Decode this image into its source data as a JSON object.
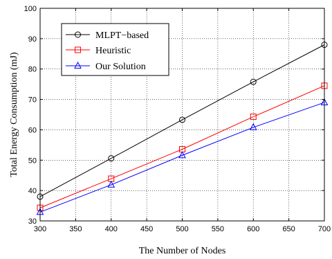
{
  "chart_data": {
    "type": "line",
    "xlabel": "The Number of Nodes",
    "ylabel": "Total Energy Consumption (mJ)",
    "xlim": [
      300,
      700
    ],
    "ylim": [
      30,
      100
    ],
    "xticks": [
      300,
      350,
      400,
      450,
      500,
      550,
      600,
      650,
      700
    ],
    "yticks": [
      30,
      40,
      50,
      60,
      70,
      80,
      90,
      100
    ],
    "grid": true,
    "legend_position": "top-left",
    "series": [
      {
        "name": "MLPT−based",
        "color": "#000000",
        "marker": "circle",
        "x": [
          300,
          400,
          500,
          600,
          700
        ],
        "y": [
          38.0,
          50.6,
          63.3,
          75.8,
          88.0
        ]
      },
      {
        "name": "Heuristic",
        "color": "#ff0000",
        "marker": "square",
        "x": [
          300,
          400,
          500,
          600,
          700
        ],
        "y": [
          34.3,
          43.9,
          53.6,
          64.3,
          74.5
        ]
      },
      {
        "name": "Our Solution",
        "color": "#0000ff",
        "marker": "triangle",
        "x": [
          300,
          400,
          500,
          600,
          700
        ],
        "y": [
          32.9,
          41.9,
          51.6,
          60.8,
          69.0
        ]
      }
    ]
  }
}
